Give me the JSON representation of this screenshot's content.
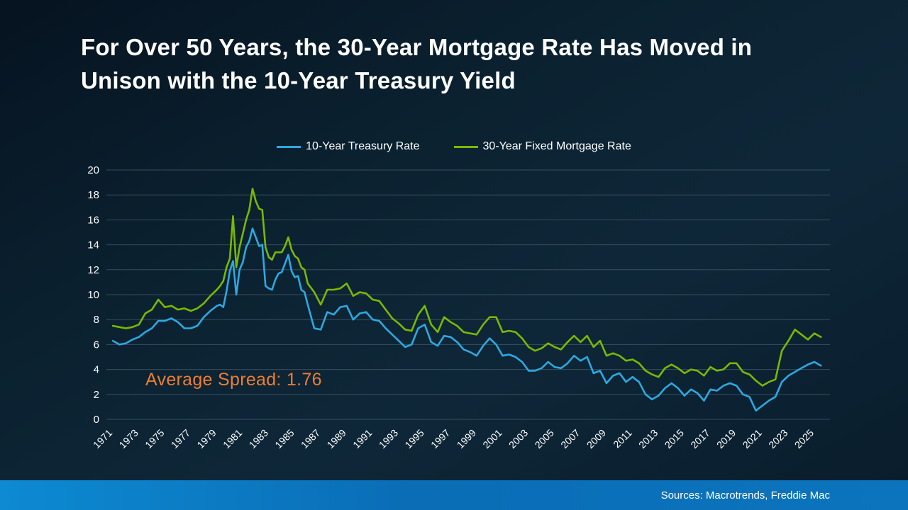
{
  "page": {
    "source_note": "Sources: Macrotrends, Freddie Mac"
  },
  "chart_data": {
    "type": "line",
    "title": "For Over 50 Years, the 30-Year Mortgage Rate Has Moved in Unison with the 10-Year Treasury Yield",
    "xlabel": "",
    "ylabel": "",
    "xlim": [
      1970.5,
      2026.2
    ],
    "ylim": [
      0,
      20
    ],
    "y_ticks": [
      0,
      2,
      4,
      6,
      8,
      10,
      12,
      14,
      16,
      18,
      20
    ],
    "x_ticks": [
      1971,
      1973,
      1975,
      1977,
      1979,
      1981,
      1983,
      1985,
      1987,
      1989,
      1991,
      1993,
      1995,
      1997,
      1999,
      2001,
      2003,
      2005,
      2007,
      2009,
      2011,
      2013,
      2015,
      2017,
      2019,
      2021,
      2023,
      2025
    ],
    "grid": "horizontal",
    "legend_position": "top",
    "annotation": {
      "text": "Average Spread: 1.76",
      "color": "#ed7d31"
    },
    "x": [
      1971,
      1971.5,
      1972,
      1972.5,
      1973,
      1973.5,
      1974,
      1974.5,
      1975,
      1975.5,
      1976,
      1976.5,
      1977,
      1977.5,
      1978,
      1978.5,
      1979,
      1979.25,
      1979.5,
      1979.75,
      1980,
      1980.25,
      1980.5,
      1980.75,
      1981,
      1981.25,
      1981.5,
      1981.75,
      1982,
      1982.25,
      1982.5,
      1982.75,
      1983,
      1983.25,
      1983.5,
      1983.75,
      1984,
      1984.25,
      1984.5,
      1984.75,
      1985,
      1985.25,
      1985.5,
      1985.75,
      1986,
      1986.5,
      1987,
      1987.5,
      1988,
      1988.5,
      1989,
      1989.5,
      1990,
      1990.5,
      1991,
      1991.5,
      1992,
      1992.5,
      1993,
      1993.5,
      1994,
      1994.5,
      1995,
      1995.5,
      1996,
      1996.5,
      1997,
      1997.5,
      1998,
      1998.5,
      1999,
      1999.5,
      2000,
      2000.5,
      2001,
      2001.5,
      2002,
      2002.5,
      2003,
      2003.5,
      2004,
      2004.5,
      2005,
      2005.5,
      2006,
      2006.5,
      2007,
      2007.5,
      2008,
      2008.5,
      2009,
      2009.5,
      2010,
      2010.5,
      2011,
      2011.5,
      2012,
      2012.5,
      2013,
      2013.5,
      2014,
      2014.5,
      2015,
      2015.5,
      2016,
      2016.5,
      2017,
      2017.5,
      2018,
      2018.5,
      2019,
      2019.5,
      2020,
      2020.5,
      2021,
      2021.5,
      2022,
      2022.5,
      2023,
      2023.5,
      2024,
      2024.5,
      2025,
      2025.5
    ],
    "series": [
      {
        "name": "10-Year Treasury Rate",
        "color": "#2da8e0",
        "values": [
          6.3,
          6.0,
          6.1,
          6.4,
          6.6,
          7.0,
          7.3,
          7.9,
          7.9,
          8.1,
          7.8,
          7.3,
          7.3,
          7.5,
          8.2,
          8.7,
          9.1,
          9.2,
          9.0,
          10.3,
          11.9,
          12.7,
          10.0,
          12.0,
          12.6,
          13.8,
          14.3,
          15.3,
          14.6,
          13.9,
          14.0,
          10.7,
          10.5,
          10.4,
          11.2,
          11.7,
          11.8,
          12.5,
          13.2,
          11.9,
          11.4,
          11.5,
          10.4,
          10.2,
          9.2,
          7.3,
          7.2,
          8.6,
          8.4,
          9.0,
          9.1,
          8.0,
          8.5,
          8.6,
          8.0,
          7.9,
          7.3,
          6.8,
          6.3,
          5.8,
          6.0,
          7.3,
          7.6,
          6.2,
          5.9,
          6.7,
          6.6,
          6.2,
          5.6,
          5.4,
          5.1,
          5.9,
          6.5,
          6.0,
          5.1,
          5.2,
          5.0,
          4.6,
          3.9,
          3.9,
          4.1,
          4.6,
          4.2,
          4.1,
          4.5,
          5.1,
          4.7,
          5.0,
          3.7,
          3.9,
          2.9,
          3.5,
          3.7,
          3.0,
          3.4,
          3.0,
          2.0,
          1.6,
          1.9,
          2.5,
          2.9,
          2.5,
          1.9,
          2.4,
          2.1,
          1.5,
          2.4,
          2.3,
          2.7,
          2.9,
          2.7,
          2.0,
          1.8,
          0.7,
          1.1,
          1.5,
          1.8,
          3.0,
          3.5,
          3.8,
          4.1,
          4.4,
          4.6,
          4.3
        ]
      },
      {
        "name": "30-Year Fixed Mortgage Rate",
        "color": "#7ab800",
        "values": [
          7.5,
          7.4,
          7.3,
          7.4,
          7.6,
          8.5,
          8.8,
          9.6,
          9.0,
          9.1,
          8.8,
          8.9,
          8.7,
          8.9,
          9.3,
          9.9,
          10.4,
          10.7,
          11.1,
          12.2,
          12.9,
          16.3,
          12.2,
          13.8,
          14.9,
          16.0,
          16.8,
          18.5,
          17.5,
          16.9,
          16.8,
          13.8,
          13.0,
          12.8,
          13.4,
          13.4,
          13.4,
          13.9,
          14.6,
          13.6,
          13.1,
          12.9,
          12.2,
          12.0,
          10.9,
          10.2,
          9.2,
          10.4,
          10.4,
          10.5,
          10.9,
          9.9,
          10.2,
          10.1,
          9.6,
          9.5,
          8.8,
          8.1,
          7.7,
          7.2,
          7.1,
          8.4,
          9.1,
          7.6,
          7.0,
          8.2,
          7.8,
          7.5,
          7.0,
          6.9,
          6.8,
          7.6,
          8.2,
          8.2,
          7.0,
          7.1,
          7.0,
          6.5,
          5.8,
          5.5,
          5.7,
          6.1,
          5.8,
          5.6,
          6.2,
          6.7,
          6.2,
          6.7,
          5.8,
          6.3,
          5.1,
          5.3,
          5.1,
          4.7,
          4.8,
          4.5,
          3.9,
          3.6,
          3.4,
          4.1,
          4.4,
          4.1,
          3.7,
          4.0,
          3.9,
          3.5,
          4.2,
          3.9,
          4.0,
          4.5,
          4.5,
          3.8,
          3.6,
          3.1,
          2.7,
          3.0,
          3.2,
          5.5,
          6.3,
          7.2,
          6.8,
          6.4,
          6.9,
          6.6
        ]
      }
    ]
  }
}
